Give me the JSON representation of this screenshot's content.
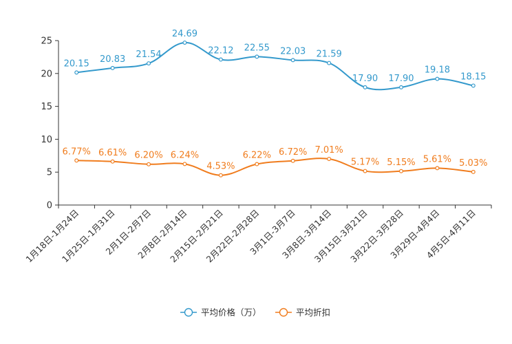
{
  "chart_data": {
    "type": "line",
    "title": "",
    "xlabel": "",
    "ylabel": "",
    "ylim": [
      0,
      25
    ],
    "yticks": [
      0,
      5,
      10,
      15,
      20,
      25
    ],
    "grid": false,
    "legend_position": "bottom-center",
    "categories": [
      "1月18日-1月24日",
      "1月25日-1月31日",
      "2月1日-2月7日",
      "2月8日-2月14日",
      "2月15日-2月21日",
      "2月22日-2月28日",
      "3月1日-3月7日",
      "3月8日-3月14日",
      "3月15日-3月21日",
      "3月22日-3月28日",
      "3月29日-4月4日",
      "4月5日-4月11日"
    ],
    "series": [
      {
        "name": "平均价格（万）",
        "color": "#3399cc",
        "values": [
          20.15,
          20.83,
          21.54,
          24.69,
          22.12,
          22.55,
          22.03,
          21.59,
          17.9,
          17.9,
          19.18,
          18.15
        ],
        "labels": [
          "20.15",
          "20.83",
          "21.54",
          "24.69",
          "22.12",
          "22.55",
          "22.03",
          "21.59",
          "17.90",
          "17.90",
          "19.18",
          "18.15"
        ]
      },
      {
        "name": "平均折扣",
        "color": "#f07c1d",
        "values": [
          6.77,
          6.61,
          6.2,
          6.24,
          4.53,
          6.22,
          6.72,
          7.01,
          5.17,
          5.15,
          5.61,
          5.03
        ],
        "labels": [
          "6.77%",
          "6.61%",
          "6.20%",
          "6.24%",
          "4.53%",
          "6.22%",
          "6.72%",
          "7.01%",
          "5.17%",
          "5.15%",
          "5.61%",
          "5.03%"
        ]
      }
    ]
  }
}
